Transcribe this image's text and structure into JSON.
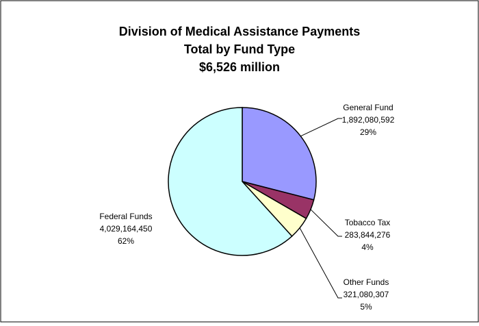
{
  "chart_data": {
    "type": "pie",
    "title": [
      "Division of Medical Assistance Payments",
      "Total by Fund Type",
      "$6,526 million"
    ],
    "slices": [
      {
        "label": "General Fund",
        "value": 1892080592,
        "value_text": "1,892,080,592",
        "percent_text": "29%",
        "color": "#9999ff"
      },
      {
        "label": "Tobacco Tax",
        "value": 283844276,
        "value_text": "283,844,276",
        "percent_text": "4%",
        "color": "#993366"
      },
      {
        "label": "Other Funds",
        "value": 321080307,
        "value_text": "321,080,307",
        "percent_text": "5%",
        "color": "#ffffcc"
      },
      {
        "label": "Federal Funds",
        "value": 4029164450,
        "value_text": "4,029,164,450",
        "percent_text": "62%",
        "color": "#ccffff"
      }
    ],
    "start_angle": "12 o'clock",
    "direction": "clockwise",
    "legend": "none"
  }
}
